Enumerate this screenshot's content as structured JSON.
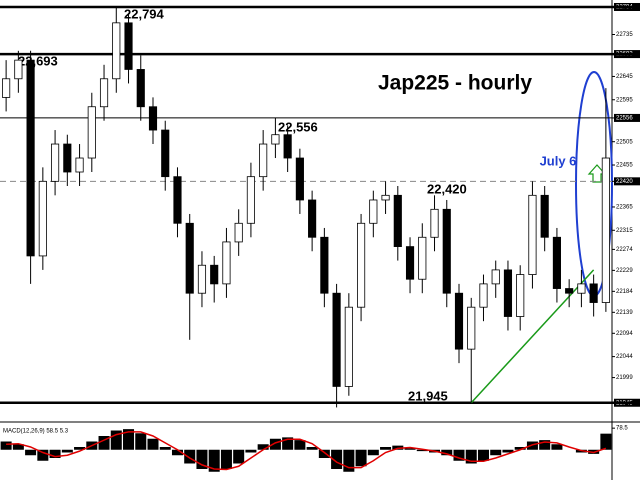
{
  "chart_data": [
    {
      "type": "candlestick",
      "title": "Jap225 - hourly",
      "open": [
        22600,
        22640,
        22680,
        22260,
        22420,
        22500,
        22440,
        22470,
        22580,
        22640,
        22760,
        22660,
        22580,
        22530,
        22430,
        22330,
        22180,
        22240,
        22200,
        22290,
        22330,
        22430,
        22500,
        22520,
        22470,
        22380,
        22300,
        22180,
        21980,
        22150,
        22330,
        22380,
        22390,
        22280,
        22210,
        22300,
        22360,
        22180,
        22060,
        22150,
        22200,
        22230,
        22130,
        22220,
        22390,
        22300,
        22190,
        22180,
        22200,
        22160
      ],
      "high": [
        22680,
        22700,
        22700,
        22450,
        22530,
        22520,
        22500,
        22610,
        22670,
        22794,
        22780,
        22690,
        22600,
        22550,
        22450,
        22350,
        22270,
        22260,
        22320,
        22360,
        22460,
        22530,
        22556,
        22540,
        22490,
        22400,
        22320,
        22200,
        22180,
        22350,
        22400,
        22420,
        22410,
        22300,
        22330,
        22390,
        22380,
        22200,
        22170,
        22220,
        22250,
        22250,
        22240,
        22420,
        22410,
        22320,
        22210,
        22230,
        22220,
        22620
      ],
      "low": [
        22570,
        22610,
        22200,
        22230,
        22390,
        22410,
        22410,
        22440,
        22550,
        22610,
        22630,
        22550,
        22500,
        22400,
        22300,
        22080,
        22150,
        22160,
        22170,
        22260,
        22300,
        22400,
        22470,
        22440,
        22350,
        22270,
        22150,
        21935,
        21960,
        22120,
        22300,
        22350,
        22250,
        22180,
        22180,
        22270,
        22150,
        22030,
        21945,
        22120,
        22170,
        22100,
        22100,
        22190,
        22270,
        22160,
        22150,
        22150,
        22130,
        22140
      ],
      "close": [
        22640,
        22680,
        22260,
        22420,
        22500,
        22440,
        22470,
        22580,
        22640,
        22760,
        22660,
        22580,
        22530,
        22430,
        22330,
        22180,
        22240,
        22200,
        22290,
        22330,
        22430,
        22500,
        22520,
        22470,
        22380,
        22300,
        22180,
        21980,
        22150,
        22330,
        22380,
        22390,
        22280,
        22210,
        22300,
        22360,
        22180,
        22060,
        22150,
        22200,
        22230,
        22130,
        22220,
        22390,
        22300,
        22190,
        22180,
        22200,
        22160,
        22470
      ],
      "up_color": "#ffffff",
      "down_color": "#000000",
      "ylim": [
        21908,
        22809
      ],
      "yticks": [
        22794,
        22735,
        22693,
        22645,
        22595,
        22556,
        22505,
        22455,
        22420,
        22365,
        22315,
        22274,
        22229,
        22184,
        22139,
        22094,
        22044,
        21999,
        21945
      ],
      "levels": [
        {
          "value": 22794,
          "label": "22,794",
          "style": "thick"
        },
        {
          "value": 22693,
          "label": "22,693",
          "style": "thick"
        },
        {
          "value": 22556,
          "label": "22,556",
          "style": "thin"
        },
        {
          "value": 22420,
          "label": "22,420",
          "style": "dashed"
        },
        {
          "value": 21945,
          "label": "21,945",
          "style": "thick"
        }
      ],
      "trendline": {
        "color": "#1a9a1a",
        "x": [
          38,
          48
        ],
        "y": [
          21945,
          22230
        ]
      },
      "annotation": {
        "text": "July 6",
        "color": "#1f3fd1"
      }
    },
    {
      "type": "macd",
      "title": "MACD(12,26,9) 58.5 5.3",
      "histogram": [
        30,
        20,
        -20,
        -40,
        -30,
        -10,
        10,
        30,
        50,
        70,
        75,
        60,
        40,
        10,
        -20,
        -50,
        -70,
        -80,
        -70,
        -50,
        -10,
        20,
        40,
        45,
        35,
        10,
        -30,
        -70,
        -80,
        -60,
        -20,
        10,
        15,
        5,
        -5,
        -10,
        -20,
        -40,
        -50,
        -40,
        -20,
        -10,
        10,
        30,
        35,
        20,
        0,
        -10,
        -15,
        58.5
      ],
      "signal": [
        20,
        22,
        10,
        -10,
        -25,
        -20,
        -5,
        15,
        35,
        55,
        65,
        65,
        50,
        25,
        0,
        -30,
        -55,
        -70,
        -72,
        -60,
        -30,
        0,
        25,
        38,
        38,
        22,
        -10,
        -45,
        -65,
        -65,
        -40,
        -10,
        5,
        8,
        2,
        -5,
        -15,
        -30,
        -42,
        -42,
        -30,
        -15,
        0,
        18,
        28,
        25,
        10,
        -3,
        -10,
        5.3
      ],
      "histogram_color": "#000000",
      "signal_color": "#e00000",
      "ylim": [
        -110,
        90
      ],
      "yticks": [
        78.5
      ]
    }
  ]
}
